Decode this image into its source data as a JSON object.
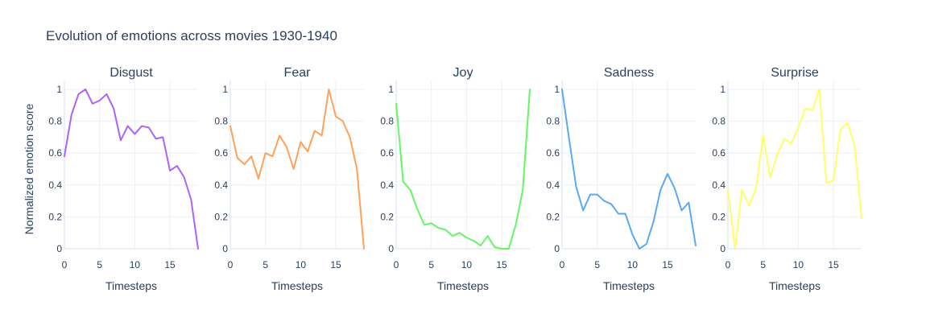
{
  "title": "Evolution of emotions across movies 1930-1940",
  "y_axis_title": "Normalized emotion score",
  "chart_data": [
    {
      "type": "line",
      "title": "Disgust",
      "xlabel": "Timesteps",
      "ylabel": "Normalized emotion score",
      "color": "#ab63fa",
      "xlim": [
        0,
        19
      ],
      "ylim": [
        0,
        1.05
      ],
      "x": [
        0,
        1,
        2,
        3,
        4,
        5,
        6,
        7,
        8,
        9,
        10,
        11,
        12,
        13,
        14,
        15,
        16,
        17,
        18,
        19
      ],
      "values": [
        0.58,
        0.84,
        0.97,
        1.0,
        0.91,
        0.93,
        0.97,
        0.88,
        0.68,
        0.77,
        0.72,
        0.77,
        0.76,
        0.69,
        0.7,
        0.49,
        0.52,
        0.45,
        0.31,
        0.0
      ]
    },
    {
      "type": "line",
      "title": "Fear",
      "xlabel": "Timesteps",
      "color": "#ffa15a",
      "xlim": [
        0,
        19
      ],
      "ylim": [
        0,
        1.05
      ],
      "x": [
        0,
        1,
        2,
        3,
        4,
        5,
        6,
        7,
        8,
        9,
        10,
        11,
        12,
        13,
        14,
        15,
        16,
        17,
        18,
        19
      ],
      "values": [
        0.77,
        0.57,
        0.53,
        0.58,
        0.44,
        0.6,
        0.58,
        0.71,
        0.64,
        0.5,
        0.67,
        0.61,
        0.74,
        0.71,
        1.0,
        0.83,
        0.8,
        0.7,
        0.5,
        0.0
      ]
    },
    {
      "type": "line",
      "title": "Joy",
      "xlabel": "Timesteps",
      "color": "#66f566",
      "xlim": [
        0,
        19
      ],
      "ylim": [
        0,
        1.05
      ],
      "x": [
        0,
        1,
        2,
        3,
        4,
        5,
        6,
        7,
        8,
        9,
        10,
        11,
        12,
        13,
        14,
        15,
        16,
        17,
        18,
        19
      ],
      "values": [
        0.91,
        0.42,
        0.37,
        0.25,
        0.15,
        0.16,
        0.13,
        0.12,
        0.08,
        0.1,
        0.07,
        0.05,
        0.02,
        0.08,
        0.01,
        0.0,
        0.0,
        0.15,
        0.37,
        1.0
      ]
    },
    {
      "type": "line",
      "title": "Sadness",
      "xlabel": "Timesteps",
      "color": "#5aa9f2",
      "xlim": [
        0,
        19
      ],
      "ylim": [
        0,
        1.05
      ],
      "x": [
        0,
        1,
        2,
        3,
        4,
        5,
        6,
        7,
        8,
        9,
        10,
        11,
        12,
        13,
        14,
        15,
        16,
        17,
        18,
        19
      ],
      "values": [
        1.0,
        0.69,
        0.39,
        0.24,
        0.34,
        0.34,
        0.3,
        0.28,
        0.22,
        0.22,
        0.09,
        0.0,
        0.03,
        0.17,
        0.37,
        0.47,
        0.38,
        0.24,
        0.29,
        0.02
      ]
    },
    {
      "type": "line",
      "title": "Surprise",
      "xlabel": "Timesteps",
      "color": "#ffff66",
      "xlim": [
        0,
        19
      ],
      "ylim": [
        0,
        1.05
      ],
      "x": [
        0,
        1,
        2,
        3,
        4,
        5,
        6,
        7,
        8,
        9,
        10,
        11,
        12,
        13,
        14,
        15,
        16,
        17,
        18,
        19
      ],
      "values": [
        0.37,
        0.0,
        0.37,
        0.27,
        0.38,
        0.71,
        0.45,
        0.59,
        0.69,
        0.66,
        0.76,
        0.88,
        0.87,
        1.0,
        0.41,
        0.43,
        0.75,
        0.79,
        0.65,
        0.19
      ]
    }
  ],
  "x_ticks": [
    0,
    5,
    10,
    15
  ],
  "y_ticks": [
    0,
    0.2,
    0.4,
    0.6,
    0.8,
    1
  ]
}
